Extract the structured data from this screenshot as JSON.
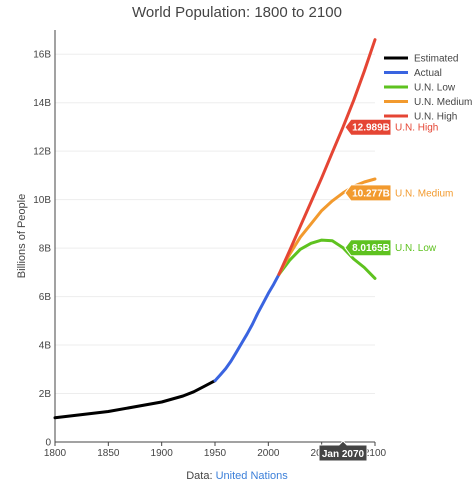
{
  "chart_data": {
    "type": "line",
    "title": "World Population: 1800 to 2100",
    "ylabel": "Billions of People",
    "xlim": [
      1800,
      2100
    ],
    "ylim": [
      0,
      17
    ],
    "xticks": [
      "1800",
      "1850",
      "1900",
      "1950",
      "2000",
      "2050",
      "2100"
    ],
    "yticks": [
      "0",
      "2B",
      "4B",
      "6B",
      "8B",
      "10B",
      "12B",
      "14B",
      "16B"
    ],
    "legend_position": "top-right",
    "series": [
      {
        "name": "Estimated",
        "color": "#000000",
        "x": [
          1800,
          1850,
          1900,
          1920,
          1930,
          1940,
          1950
        ],
        "y": [
          1.0,
          1.26,
          1.65,
          1.9,
          2.07,
          2.3,
          2.53
        ]
      },
      {
        "name": "Actual",
        "color": "#3a64e0",
        "x": [
          1950,
          1955,
          1960,
          1965,
          1970,
          1975,
          1980,
          1985,
          1990,
          1995,
          2000,
          2005,
          2010
        ],
        "y": [
          2.53,
          2.77,
          3.03,
          3.34,
          3.7,
          4.08,
          4.45,
          4.85,
          5.31,
          5.72,
          6.13,
          6.51,
          6.92
        ]
      },
      {
        "name": "U.N. Low",
        "color": "#5ec21f",
        "x": [
          2010,
          2020,
          2030,
          2040,
          2050,
          2060,
          2070,
          2080,
          2090,
          2100
        ],
        "y": [
          6.92,
          7.5,
          7.95,
          8.2,
          8.33,
          8.3,
          8.0165,
          7.55,
          7.2,
          6.75
        ]
      },
      {
        "name": "U.N. Medium",
        "color": "#f29a2e",
        "x": [
          2010,
          2020,
          2030,
          2040,
          2050,
          2060,
          2070,
          2080,
          2090,
          2100
        ],
        "y": [
          6.92,
          7.75,
          8.45,
          9.0,
          9.55,
          9.95,
          10.277,
          10.55,
          10.73,
          10.85
        ]
      },
      {
        "name": "U.N. High",
        "color": "#e54534",
        "x": [
          2010,
          2020,
          2030,
          2040,
          2050,
          2060,
          2070,
          2080,
          2090,
          2100
        ],
        "y": [
          6.92,
          7.9,
          8.9,
          9.9,
          10.9,
          11.95,
          12.989,
          14.1,
          15.3,
          16.6
        ]
      }
    ],
    "hover": {
      "x_label": "Jan 2070",
      "labels": [
        {
          "series": "U.N. High",
          "value": "12.989B",
          "y": 12.989
        },
        {
          "series": "U.N. Medium",
          "value": "10.277B",
          "y": 10.277
        },
        {
          "series": "U.N. Low",
          "value": "8.0165B",
          "y": 8.0165
        }
      ]
    }
  },
  "footer": {
    "prefix": "Data: ",
    "link_text": "United Nations"
  }
}
